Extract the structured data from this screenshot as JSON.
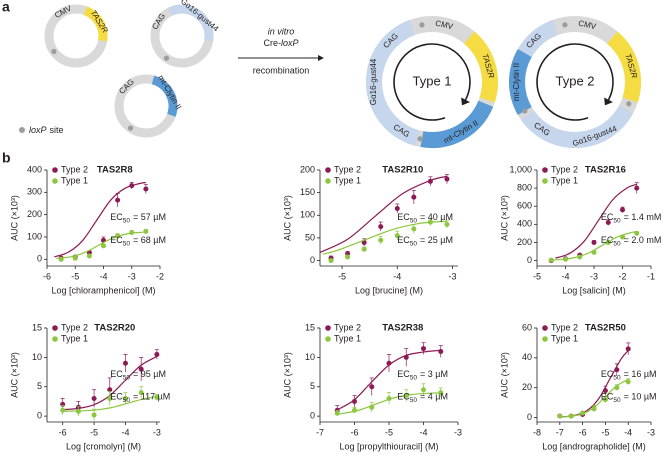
{
  "panel_a": {
    "label": "a",
    "plasmids": [
      {
        "labels": [
          "CMV",
          "TAS2R"
        ]
      },
      {
        "labels": [
          "CAG",
          "Gα16-gust44"
        ]
      },
      {
        "labels": [
          "CAG",
          "mt-Clytin II"
        ]
      }
    ],
    "legend": {
      "italic": "loxP",
      "text": "site"
    },
    "arrow": {
      "line1": "in vitro",
      "line2": "Cre-",
      "line2_italic": "loxP",
      "line3": "recombination"
    },
    "constructs": [
      {
        "name": "Type 1",
        "segments": [
          "CAG",
          "CMV",
          "TAS2R",
          "mt-Clytin II",
          "CAG",
          "Gα16-gust44"
        ]
      },
      {
        "name": "Type 2",
        "segments": [
          "CAG",
          "CMV",
          "TAS2R",
          "Gα16-gust44",
          "CAG",
          "mt-Clytin II"
        ]
      }
    ]
  },
  "panel_b": {
    "label": "b"
  },
  "chart_data": [
    {
      "type": "line",
      "title": "TAS2R8",
      "xlabel": "Log [chloramphenicol] (M)",
      "ylabel": "AUC (×10³)",
      "xlim": [
        -6,
        -2
      ],
      "xticks": [
        -6,
        -5,
        -4,
        -3,
        -2
      ],
      "ylim": [
        -30,
        400
      ],
      "yticks": [
        0,
        100,
        200,
        300,
        400
      ],
      "legend": "upper left",
      "series": [
        {
          "name": "Type 2",
          "color": "#8b1a55",
          "x": [
            -5.5,
            -5,
            -4.5,
            -4,
            -3.5,
            -3,
            -2.5
          ],
          "values": [
            5,
            10,
            30,
            85,
            265,
            330,
            315
          ],
          "errors": [
            5,
            5,
            8,
            15,
            30,
            15,
            20
          ],
          "fit_x": [
            -5.74,
            -5.24,
            -4.74,
            -4.24,
            -3.74,
            -3.24,
            -2.74,
            -2.5
          ],
          "fit_values": [
            11,
            32,
            84,
            175,
            266,
            318,
            339,
            344
          ]
        },
        {
          "name": "Type 1",
          "color": "#8dc63f",
          "x": [
            -5.5,
            -5,
            -4.5,
            -4,
            -3.5,
            -3,
            -2.5
          ],
          "values": [
            0,
            5,
            15,
            60,
            105,
            120,
            125
          ],
          "errors": [
            3,
            3,
            5,
            8,
            10,
            8,
            8
          ],
          "fit_x": [
            -5.67,
            -5.17,
            -4.67,
            -4.17,
            -3.67,
            -3.17,
            -2.67,
            -2.5
          ],
          "fit_values": [
            4,
            11,
            30,
            63,
            95,
            114,
            121,
            122
          ]
        }
      ],
      "annotations": [
        {
          "text": "EC",
          "sub": "50",
          "value": "= 57 µM"
        },
        {
          "text": "EC",
          "sub": "50",
          "value": "= 68 µM"
        }
      ]
    },
    {
      "type": "line",
      "title": "TAS2R10",
      "xlabel": "Log [brucine] (M)",
      "ylabel": "AUC (×10³)",
      "xlim": [
        -5.4,
        -2.9
      ],
      "xticks": [
        -5,
        -4,
        -3
      ],
      "ylim": [
        -12,
        200
      ],
      "yticks": [
        0,
        50,
        100,
        150,
        200
      ],
      "legend": "upper left",
      "series": [
        {
          "name": "Type 2",
          "color": "#8b1a55",
          "x": [
            -5.2,
            -4.9,
            -4.6,
            -4.3,
            -4,
            -3.7,
            -3.4,
            -3.1
          ],
          "values": [
            5,
            15,
            40,
            75,
            115,
            140,
            175,
            180
          ],
          "errors": [
            5,
            5,
            8,
            10,
            10,
            15,
            10,
            10
          ],
          "fit_x": [
            -5.4,
            -4.9,
            -4.4,
            -3.9,
            -3.4,
            -3.1
          ],
          "fit_values": [
            18,
            47,
            98,
            148,
            177,
            186
          ]
        },
        {
          "name": "Type 1",
          "color": "#8dc63f",
          "x": [
            -5.2,
            -4.9,
            -4.6,
            -4.3,
            -4,
            -3.7,
            -3.4,
            -3.1
          ],
          "values": [
            0,
            8,
            25,
            45,
            55,
            70,
            85,
            80
          ],
          "errors": [
            3,
            4,
            5,
            8,
            10,
            10,
            8,
            8
          ],
          "fit_x": [
            -5.35,
            -5.1,
            -4.6,
            -4.1,
            -3.6,
            -3.1
          ],
          "fit_values": [
            14,
            22,
            45,
            68,
            82,
            87
          ]
        }
      ],
      "annotations": [
        {
          "text": "EC",
          "sub": "50",
          "value": "= 40 µM"
        },
        {
          "text": "EC",
          "sub": "50",
          "value": "= 25 µM"
        }
      ]
    },
    {
      "type": "line",
      "title": "TAS2R16",
      "xlabel": "Log [salicin] (M)",
      "ylabel": "AUC (×10³)",
      "xlim": [
        -5,
        -1
      ],
      "xticks": [
        -5,
        -4,
        -3,
        -2,
        -1
      ],
      "ylim": [
        -60,
        1000
      ],
      "yticks": [
        0,
        200,
        400,
        600,
        800,
        {
          "value": 1000,
          "label": "1,000"
        }
      ],
      "legend": "upper left",
      "series": [
        {
          "name": "Type 2",
          "color": "#8b1a55",
          "x": [
            -4.5,
            -4,
            -3.5,
            -3,
            -2.5,
            -2,
            -1.5
          ],
          "values": [
            0,
            20,
            60,
            200,
            420,
            560,
            800
          ],
          "errors": [
            10,
            10,
            15,
            20,
            30,
            30,
            60
          ],
          "fit_x": [
            -4.35,
            -3.85,
            -3.35,
            -2.85,
            -2.35,
            -1.85,
            -1.5
          ],
          "fit_values": [
            27,
            80,
            211,
            440,
            669,
            800,
            842
          ]
        },
        {
          "name": "Type 1",
          "color": "#8dc63f",
          "x": [
            -4.5,
            -4,
            -3.5,
            -3,
            -2.5,
            -2,
            -1.5
          ],
          "values": [
            5,
            15,
            40,
            90,
            200,
            260,
            300
          ],
          "errors": [
            5,
            5,
            10,
            10,
            15,
            15,
            20
          ],
          "fit_x": [
            -4.5,
            -4.2,
            -3.7,
            -3.2,
            -2.7,
            -2.2,
            -1.7,
            -1.5
          ],
          "fit_values": [
            5,
            11,
            31,
            82,
            170,
            258,
            309,
            320
          ]
        }
      ],
      "annotations": [
        {
          "text": "EC",
          "sub": "50",
          "value": "= 1.4 mM"
        },
        {
          "text": "EC",
          "sub": "50",
          "value": "= 2.0 mM"
        }
      ]
    },
    {
      "type": "line",
      "title": "TAS2R20",
      "xlabel": "Log [cromolyn] (M)",
      "ylabel": "AUC (×10³)",
      "xlim": [
        -6.5,
        -2.9
      ],
      "xticks": [
        -6,
        -5,
        -4,
        -3
      ],
      "ylim": [
        -1,
        15
      ],
      "yticks": [
        0,
        5,
        10,
        15
      ],
      "legend": "upper left",
      "series": [
        {
          "name": "Type 2",
          "color": "#8b1a55",
          "x": [
            -6,
            -5.5,
            -5,
            -4.5,
            -4,
            -3.5,
            -3
          ],
          "values": [
            2,
            1.5,
            3,
            4.5,
            9,
            8,
            10.5
          ],
          "errors": [
            1,
            1,
            1.5,
            2,
            1.5,
            2,
            0.8
          ],
          "fit_x": [
            -6,
            -5.52,
            -5.02,
            -4.52,
            -4.02,
            -3.52,
            -3.02
          ],
          "fit_values": [
            1.1,
            1.3,
            1.9,
            3.4,
            6.0,
            8.6,
            10.1
          ]
        },
        {
          "name": "Type 1",
          "color": "#8dc63f",
          "x": [
            -6,
            -5.5,
            -5,
            -4.5,
            -4,
            -3.5,
            -3
          ],
          "values": [
            1,
            0.8,
            0.2,
            3,
            3,
            4,
            3.2
          ],
          "errors": [
            0.8,
            0.8,
            1,
            1.2,
            1,
            1,
            0.5
          ],
          "fit_x": [
            -6,
            -5.43,
            -4.93,
            -4.43,
            -3.93,
            -3.43,
            -3
          ],
          "fit_values": [
            0.82,
            0.89,
            1.05,
            1.47,
            2.2,
            2.93,
            3.31
          ]
        }
      ],
      "annotations": [
        {
          "text": "EC",
          "sub": "50",
          "value": "= 95 µM"
        },
        {
          "text": "EC",
          "sub": "50",
          "value": "= 117 µM"
        }
      ]
    },
    {
      "type": "line",
      "title": "TAS2R38",
      "xlabel": "Log [propylthiouracil] (M)",
      "ylabel": "AUC (×10³)",
      "xlim": [
        -7,
        -3
      ],
      "xticks": [
        -7,
        -6,
        -5,
        -4,
        -3
      ],
      "ylim": [
        -1,
        15
      ],
      "yticks": [
        0,
        5,
        10,
        15
      ],
      "legend": "upper left",
      "series": [
        {
          "name": "Type 2",
          "color": "#8b1a55",
          "x": [
            -6.5,
            -6,
            -5.5,
            -5,
            -4.5,
            -4,
            -3.5
          ],
          "values": [
            1,
            2.5,
            5,
            9,
            10,
            11.5,
            11
          ],
          "errors": [
            0.8,
            1,
            1.5,
            1.5,
            1.5,
            1,
            1
          ],
          "fit_x": [
            -6.52,
            -6.02,
            -5.52,
            -5.02,
            -4.52,
            -4.02,
            -3.52
          ],
          "fit_values": [
            1.0,
            2.7,
            5.7,
            8.6,
            10.3,
            10.9,
            11.2
          ]
        },
        {
          "name": "Type 1",
          "color": "#8dc63f",
          "x": [
            -6.5,
            -6,
            -5.5,
            -5,
            -4.5,
            -4,
            -3.5
          ],
          "values": [
            0.5,
            1,
            1.5,
            3,
            3.5,
            4.5,
            4
          ],
          "errors": [
            0.5,
            0.5,
            0.8,
            1,
            1,
            1,
            0.8
          ],
          "fit_x": [
            -6.5,
            -5.9,
            -5.4,
            -4.9,
            -4.4,
            -3.9,
            -3.5
          ],
          "fit_values": [
            0.3,
            0.96,
            2,
            3.04,
            3.64,
            3.88,
            3.95
          ]
        }
      ],
      "annotations": [
        {
          "text": "EC",
          "sub": "50",
          "value": "= 3 µM"
        },
        {
          "text": "EC",
          "sub": "50",
          "value": "= 4 µM"
        }
      ]
    },
    {
      "type": "line",
      "title": "TAS2R50",
      "xlabel": "Log [andrographolide] (M)",
      "ylabel": "AUC (×10³)",
      "xlim": [
        -8,
        -3
      ],
      "xticks": [
        -8,
        -7,
        -6,
        -5,
        -4,
        -3
      ],
      "ylim": [
        -3,
        60
      ],
      "yticks": [
        0,
        20,
        40,
        60
      ],
      "legend": "upper left",
      "series": [
        {
          "name": "Type 2",
          "color": "#8b1a55",
          "x": [
            -7,
            -6.5,
            -6,
            -5.5,
            -5,
            -4.5,
            -4
          ],
          "values": [
            1,
            1,
            2,
            6,
            18,
            32,
            46
          ],
          "errors": [
            1,
            1,
            1,
            2,
            3,
            4,
            4
          ],
          "fit_x": [
            -7,
            -6.8,
            -6.3,
            -5.8,
            -5.3,
            -4.8,
            -4.3,
            -4
          ],
          "fit_values": [
            0.3,
            0.5,
            1.6,
            4.7,
            12.5,
            26,
            39.5,
            44.9
          ]
        },
        {
          "name": "Type 1",
          "color": "#8dc63f",
          "x": [
            -7,
            -6.5,
            -6,
            -5.5,
            -5,
            -4.5,
            -4
          ],
          "values": [
            1,
            1,
            3,
            6,
            12,
            20,
            24
          ],
          "errors": [
            1,
            1,
            1,
            2,
            2,
            2,
            2
          ],
          "fit_x": [
            -7,
            -6.5,
            -6,
            -5.5,
            -5,
            -4.5,
            -4
          ],
          "fit_values": [
            0.3,
            0.9,
            2.5,
            6.7,
            14,
            21.3,
            25.5
          ]
        }
      ],
      "annotations": [
        {
          "text": "EC",
          "sub": "50",
          "value": "= 16 µM"
        },
        {
          "text": "EC",
          "sub": "50",
          "value": "= 10 µM"
        }
      ]
    }
  ]
}
